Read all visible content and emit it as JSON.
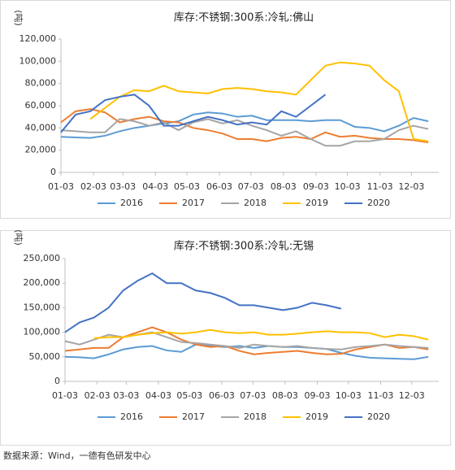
{
  "chart_data": [
    {
      "type": "line",
      "title": "库存:不锈钢:300系:冷轧:佛山",
      "ylabel": "(吨)",
      "x": [
        0,
        14,
        28,
        42,
        56,
        70,
        84,
        98,
        112,
        126,
        140,
        154,
        168,
        182,
        196,
        210,
        224,
        238,
        252,
        266,
        280,
        294,
        308,
        322,
        336,
        350
      ],
      "xlim": [
        0,
        360
      ],
      "xticks": [
        {
          "value": 0,
          "label": "01-03"
        },
        {
          "value": 31,
          "label": "02-03"
        },
        {
          "value": 59,
          "label": "03-03"
        },
        {
          "value": 90,
          "label": "04-03"
        },
        {
          "value": 120,
          "label": "05-03"
        },
        {
          "value": 151,
          "label": "06-03"
        },
        {
          "value": 181,
          "label": "07-03"
        },
        {
          "value": 212,
          "label": "08-03"
        },
        {
          "value": 243,
          "label": "09-03"
        },
        {
          "value": 273,
          "label": "10-03"
        },
        {
          "value": 304,
          "label": "11-03"
        },
        {
          "value": 334,
          "label": "12-03"
        }
      ],
      "ylim": [
        0,
        120000
      ],
      "yticks": [
        0,
        {
          "value": 20000,
          "label": "20,000"
        },
        {
          "value": 40000,
          "label": "40,000"
        },
        {
          "value": 60000,
          "label": "60,000"
        },
        {
          "value": 80000,
          "label": "80,000"
        },
        {
          "value": 100000,
          "label": "100,000"
        },
        {
          "value": 120000,
          "label": "120,000"
        }
      ],
      "series": [
        {
          "name": "2016",
          "color": "#5b9bd5",
          "values": [
            32000,
            31500,
            31000,
            33000,
            37000,
            40000,
            42000,
            44000,
            46000,
            52000,
            54000,
            53000,
            50000,
            51000,
            47000,
            47000,
            47000,
            46000,
            47000,
            47000,
            41000,
            40000,
            37000,
            42000,
            49000,
            46000
          ]
        },
        {
          "name": "2017",
          "color": "#ed7d31",
          "values": [
            45000,
            55000,
            57000,
            54000,
            45000,
            48000,
            50000,
            46000,
            45000,
            40000,
            38000,
            35000,
            30000,
            30000,
            28000,
            31000,
            32000,
            30000,
            36000,
            32000,
            33000,
            31000,
            30000,
            30000,
            29000,
            27000
          ]
        },
        {
          "name": "2018",
          "color": "#a5a5a5",
          "values": [
            38000,
            37000,
            36000,
            36000,
            48000,
            46000,
            42000,
            45000,
            38000,
            45000,
            48000,
            44000,
            47000,
            42000,
            38000,
            33000,
            37000,
            30000,
            24000,
            24000,
            28000,
            28000,
            30000,
            38000,
            42000,
            39000
          ]
        },
        {
          "name": "2019",
          "color": "#ffc000",
          "values": [
            null,
            null,
            48000,
            58000,
            68000,
            74000,
            73000,
            78000,
            73000,
            72000,
            71000,
            75000,
            76000,
            75000,
            73000,
            72000,
            70000,
            83000,
            96000,
            99000,
            98000,
            96000,
            83000,
            73000,
            30000,
            28000
          ]
        },
        {
          "name": "2020",
          "color": "#4472c4",
          "values": [
            36000,
            52000,
            55000,
            65000,
            68000,
            70000,
            60000,
            42000,
            42000,
            46000,
            50000,
            47000,
            43000,
            45000,
            43000,
            55000,
            50000,
            60000,
            70000,
            null,
            null,
            null,
            null,
            null,
            null,
            null
          ]
        }
      ]
    },
    {
      "type": "line",
      "title": "库存:不锈钢:300系:冷轧:无锡",
      "ylabel": "(吨)",
      "x": [
        0,
        14,
        28,
        42,
        56,
        70,
        84,
        98,
        112,
        126,
        140,
        154,
        168,
        182,
        196,
        210,
        224,
        238,
        252,
        266,
        280,
        294,
        308,
        322,
        336,
        350
      ],
      "xlim": [
        0,
        360
      ],
      "xticks": [
        {
          "value": 0,
          "label": "01-03"
        },
        {
          "value": 31,
          "label": "02-03"
        },
        {
          "value": 59,
          "label": "03-03"
        },
        {
          "value": 90,
          "label": "04-03"
        },
        {
          "value": 120,
          "label": "05-03"
        },
        {
          "value": 151,
          "label": "06-03"
        },
        {
          "value": 181,
          "label": "07-03"
        },
        {
          "value": 212,
          "label": "08-03"
        },
        {
          "value": 243,
          "label": "09-03"
        },
        {
          "value": 273,
          "label": "10-03"
        },
        {
          "value": 304,
          "label": "11-03"
        },
        {
          "value": 334,
          "label": "12-03"
        }
      ],
      "ylim": [
        0,
        250000
      ],
      "yticks": [
        0,
        {
          "value": 50000,
          "label": "50,000"
        },
        {
          "value": 100000,
          "label": "100,000"
        },
        {
          "value": 150000,
          "label": "150,000"
        },
        {
          "value": 200000,
          "label": "200,000"
        },
        {
          "value": 250000,
          "label": "250,000"
        }
      ],
      "series": [
        {
          "name": "2016",
          "color": "#5b9bd5",
          "values": [
            50000,
            49000,
            47000,
            55000,
            65000,
            70000,
            72000,
            63000,
            60000,
            75000,
            72000,
            70000,
            72000,
            68000,
            72000,
            70000,
            70000,
            68000,
            66000,
            58000,
            52000,
            48000,
            47000,
            46000,
            45000,
            50000
          ]
        },
        {
          "name": "2017",
          "color": "#ed7d31",
          "values": [
            62000,
            65000,
            68000,
            68000,
            90000,
            100000,
            110000,
            100000,
            85000,
            75000,
            70000,
            72000,
            62000,
            55000,
            58000,
            60000,
            62000,
            58000,
            55000,
            56000,
            65000,
            70000,
            75000,
            68000,
            70000,
            65000
          ]
        },
        {
          "name": "2018",
          "color": "#a5a5a5",
          "values": [
            82000,
            75000,
            85000,
            95000,
            90000,
            95000,
            100000,
            90000,
            80000,
            78000,
            75000,
            72000,
            68000,
            75000,
            72000,
            70000,
            72000,
            68000,
            66000,
            65000,
            70000,
            72000,
            75000,
            72000,
            70000,
            68000
          ]
        },
        {
          "name": "2019",
          "color": "#ffc000",
          "values": [
            null,
            null,
            88000,
            90000,
            90000,
            95000,
            98000,
            100000,
            97000,
            100000,
            105000,
            100000,
            98000,
            100000,
            95000,
            95000,
            97000,
            100000,
            102000,
            100000,
            100000,
            98000,
            90000,
            95000,
            92000,
            85000
          ]
        },
        {
          "name": "2020",
          "color": "#4472c4",
          "values": [
            100000,
            120000,
            130000,
            150000,
            185000,
            205000,
            220000,
            200000,
            200000,
            185000,
            180000,
            170000,
            155000,
            155000,
            150000,
            145000,
            150000,
            160000,
            155000,
            148000,
            null,
            null,
            null,
            null,
            null,
            null
          ]
        }
      ]
    }
  ],
  "source": "数据来源：Wind，一德有色研发中心"
}
